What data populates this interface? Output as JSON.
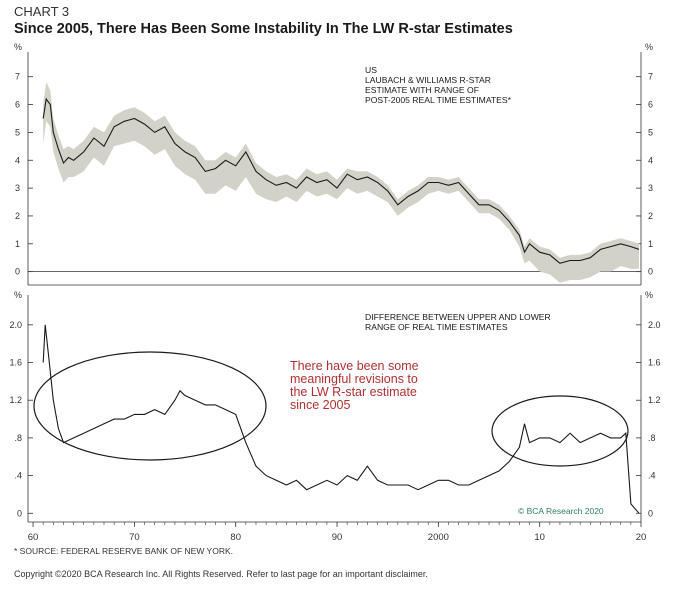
{
  "header": {
    "chart_label": "CHART 3",
    "title": "Since 2005, There Has Been Some Instability In The LW R-star Estimates"
  },
  "footer": {
    "source": "* SOURCE: FEDERAL RESERVE BANK OF NEW YORK.",
    "copyright": "Copyright ©2020 BCA Research Inc. All Rights Reserved. Refer to last page for an important disclaimer.",
    "watermark": "© BCA Research 2020"
  },
  "colors": {
    "line": "#1a1a1a",
    "band": "#d2d2c8",
    "annotation": "#b03030"
  },
  "chart_data": [
    {
      "type": "area",
      "panel": "top",
      "title": "US\nLAUBACH & WILLIAMS R-STAR\nESTIMATE WITH RANGE OF\nPOST-2005 REAL TIME ESTIMATES*",
      "unit_label": "%",
      "ylim": [
        -0.3,
        7.6
      ],
      "yticks": [
        "0",
        "1",
        "2",
        "3",
        "4",
        "5",
        "6",
        "7"
      ],
      "xlim": [
        1959.5,
        2020
      ],
      "series": [
        {
          "x": [
            1961,
            1961.3,
            1961.7,
            1962,
            1962.5,
            1963,
            1963.5,
            1964,
            1965,
            1966,
            1967,
            1968,
            1969,
            1970,
            1971,
            1972,
            1973,
            1974,
            1975,
            1976,
            1977,
            1978,
            1979,
            1980,
            1981,
            1982,
            1983,
            1984,
            1985,
            1986,
            1987,
            1988,
            1989,
            1990,
            1991,
            1992,
            1993,
            1994,
            1995,
            1996,
            1997,
            1998,
            1999,
            2000,
            2001,
            2002,
            2003,
            2004,
            2005,
            2006,
            2007,
            2008,
            2008.5,
            2009,
            2010,
            2011,
            2012,
            2013,
            2014,
            2015,
            2016,
            2017,
            2018,
            2019,
            2019.8
          ],
          "values": [
            5.5,
            6.2,
            6.0,
            5.0,
            4.4,
            3.9,
            4.1,
            4.0,
            4.3,
            4.8,
            4.5,
            5.2,
            5.4,
            5.5,
            5.3,
            5.0,
            5.2,
            4.6,
            4.3,
            4.1,
            3.6,
            3.7,
            4.0,
            3.8,
            4.3,
            3.6,
            3.3,
            3.1,
            3.2,
            3.0,
            3.4,
            3.2,
            3.3,
            3.0,
            3.5,
            3.3,
            3.4,
            3.2,
            2.9,
            2.4,
            2.7,
            2.9,
            3.2,
            3.2,
            3.1,
            3.2,
            2.8,
            2.4,
            2.4,
            2.2,
            1.8,
            1.3,
            0.7,
            1.0,
            0.7,
            0.6,
            0.3,
            0.4,
            0.4,
            0.5,
            0.8,
            0.9,
            1.0,
            0.9,
            0.8
          ],
          "upper": [
            6.0,
            6.8,
            6.5,
            5.5,
            4.9,
            4.4,
            4.5,
            4.4,
            4.7,
            5.2,
            5.0,
            5.6,
            5.8,
            5.9,
            5.7,
            5.4,
            5.6,
            5.0,
            4.7,
            4.5,
            4.0,
            4.0,
            4.3,
            4.1,
            4.6,
            3.9,
            3.6,
            3.4,
            3.5,
            3.3,
            3.7,
            3.5,
            3.6,
            3.3,
            3.7,
            3.6,
            3.6,
            3.4,
            3.1,
            2.6,
            2.9,
            3.1,
            3.4,
            3.4,
            3.3,
            3.4,
            3.0,
            2.6,
            2.6,
            2.4,
            2.0,
            1.5,
            0.9,
            1.2,
            0.9,
            0.8,
            0.5,
            0.6,
            0.6,
            0.7,
            1.0,
            1.1,
            1.2,
            1.1,
            1.0
          ],
          "lower": [
            4.6,
            5.4,
            5.2,
            4.3,
            3.7,
            3.2,
            3.4,
            3.4,
            3.6,
            4.1,
            3.8,
            4.5,
            4.6,
            4.7,
            4.5,
            4.2,
            4.4,
            3.8,
            3.5,
            3.3,
            2.8,
            2.8,
            3.1,
            2.9,
            3.4,
            2.8,
            2.6,
            2.5,
            2.7,
            2.5,
            2.9,
            2.7,
            2.8,
            2.6,
            3.0,
            2.8,
            2.9,
            2.7,
            2.5,
            2.0,
            2.3,
            2.5,
            2.8,
            2.9,
            2.8,
            2.9,
            2.5,
            2.1,
            2.1,
            1.9,
            1.5,
            0.9,
            0.3,
            0.4,
            0.0,
            -0.1,
            -0.4,
            -0.3,
            -0.3,
            -0.2,
            0.0,
            0.0,
            0.2,
            0.1,
            0.1
          ]
        }
      ]
    },
    {
      "type": "line",
      "panel": "bottom",
      "title": "DIFFERENCE BETWEEN UPPER AND LOWER\nRANGE OF REAL TIME ESTIMATES",
      "unit_label": "%",
      "ylim": [
        -0.05,
        2.2
      ],
      "yticks": [
        "0",
        ".4",
        ".8",
        "1.2",
        "1.6",
        "2.0"
      ],
      "xlim": [
        1959.5,
        2020
      ],
      "xticks": [
        "60",
        "70",
        "80",
        "90",
        "2000",
        "10",
        "20"
      ],
      "annotation": "There have been some\nmeaningful revisions to\nthe LW R-star estimate\nsince 2005",
      "series": [
        {
          "x": [
            1961,
            1961.2,
            1961.5,
            1962,
            1962.5,
            1963,
            1964,
            1965,
            1966,
            1967,
            1968,
            1969,
            1970,
            1971,
            1972,
            1973,
            1974,
            1974.5,
            1975,
            1976,
            1977,
            1978,
            1979,
            1980,
            1981,
            1982,
            1983,
            1984,
            1985,
            1986,
            1987,
            1988,
            1989,
            1990,
            1991,
            1992,
            1993,
            1994,
            1995,
            1996,
            1997,
            1998,
            1999,
            2000,
            2001,
            2002,
            2003,
            2004,
            2005,
            2006,
            2007,
            2008,
            2008.5,
            2009,
            2010,
            2011,
            2012,
            2013,
            2014,
            2015,
            2016,
            2017,
            2018,
            2018.5,
            2019,
            2019.8
          ],
          "values": [
            1.6,
            2.0,
            1.7,
            1.2,
            0.9,
            0.75,
            0.8,
            0.85,
            0.9,
            0.95,
            1.0,
            1.0,
            1.05,
            1.05,
            1.1,
            1.05,
            1.2,
            1.3,
            1.25,
            1.2,
            1.15,
            1.15,
            1.1,
            1.05,
            0.75,
            0.5,
            0.4,
            0.35,
            0.3,
            0.35,
            0.25,
            0.3,
            0.35,
            0.3,
            0.4,
            0.35,
            0.5,
            0.35,
            0.3,
            0.3,
            0.3,
            0.25,
            0.3,
            0.35,
            0.35,
            0.3,
            0.3,
            0.35,
            0.4,
            0.45,
            0.55,
            0.7,
            0.95,
            0.75,
            0.8,
            0.8,
            0.75,
            0.85,
            0.75,
            0.8,
            0.85,
            0.8,
            0.8,
            0.85,
            0.1,
            0.0
          ]
        }
      ]
    }
  ]
}
